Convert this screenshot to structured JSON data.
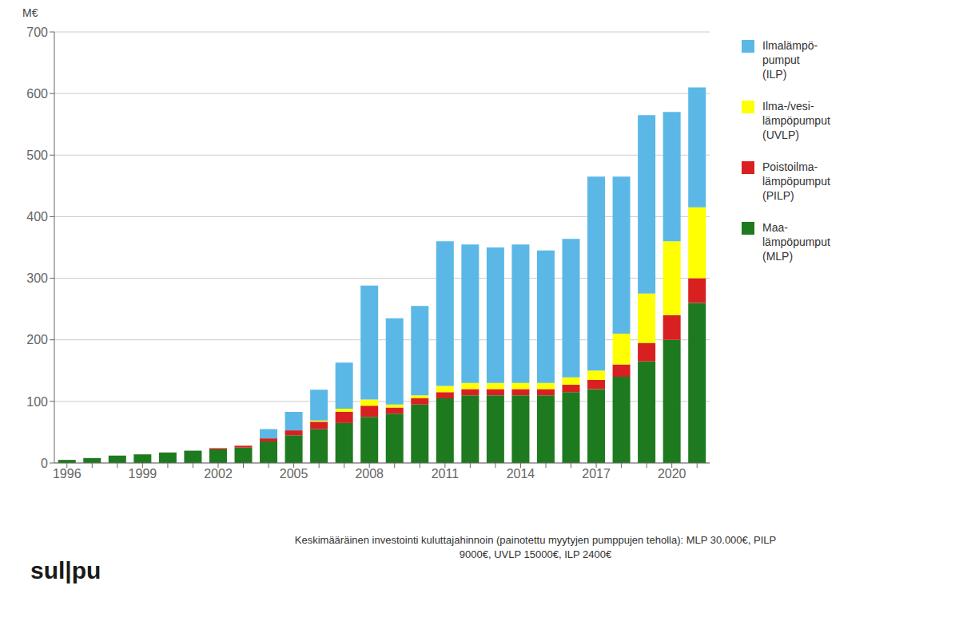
{
  "chart_data": {
    "type": "bar",
    "stacked": true,
    "y_label": "M€",
    "categories": [
      "1996",
      null,
      null,
      "1999",
      null,
      null,
      "2002",
      null,
      null,
      "2005",
      null,
      null,
      "2008",
      null,
      null,
      "2011",
      null,
      null,
      "2014",
      null,
      null,
      "2017",
      null,
      null,
      "2020",
      null
    ],
    "series": [
      {
        "name": "Maa-\nlämpöpumput\n(MLP)",
        "color": "#1E7A1E",
        "values": [
          5,
          8,
          12,
          14,
          17,
          20,
          22,
          25,
          35,
          45,
          55,
          65,
          75,
          80,
          95,
          105,
          110,
          110,
          110,
          110,
          115,
          120,
          140,
          165,
          200,
          260
        ]
      },
      {
        "name": "Poistoilma-\nlämpöpumput\n(PILP)",
        "color": "#D92020",
        "values": [
          0,
          0,
          0,
          0,
          0,
          0,
          2,
          3,
          5,
          8,
          12,
          18,
          18,
          10,
          10,
          10,
          10,
          10,
          10,
          10,
          12,
          15,
          20,
          30,
          40,
          40
        ]
      },
      {
        "name": "Ilma-/vesi-\nlämpöpumput\n(UVLP)",
        "color": "#FEFF00",
        "values": [
          0,
          0,
          0,
          0,
          0,
          0,
          0,
          0,
          0,
          0,
          2,
          5,
          10,
          5,
          5,
          10,
          10,
          10,
          10,
          10,
          12,
          15,
          50,
          80,
          120,
          115
        ]
      },
      {
        "name": "Ilmalämpö-\npumput\n(ILP)",
        "color": "#5BB8E6",
        "values": [
          0,
          0,
          0,
          0,
          0,
          0,
          0,
          0,
          15,
          30,
          50,
          75,
          185,
          140,
          145,
          235,
          225,
          220,
          225,
          215,
          225,
          315,
          255,
          290,
          210,
          195
        ]
      }
    ],
    "ylim": [
      0,
      700
    ],
    "yticks": [
      0,
      100,
      200,
      300,
      400,
      500,
      600,
      700
    ],
    "grid": true,
    "legend": "right",
    "annotations": [
      "Keskimääräinen investointi kuluttajahinnoin (painotettu myytyjen pumppujen teholla): MLP 30.000€, PILP\n9000€, UVLP 15000€, ILP 2400€",
      "sul|pu"
    ]
  }
}
